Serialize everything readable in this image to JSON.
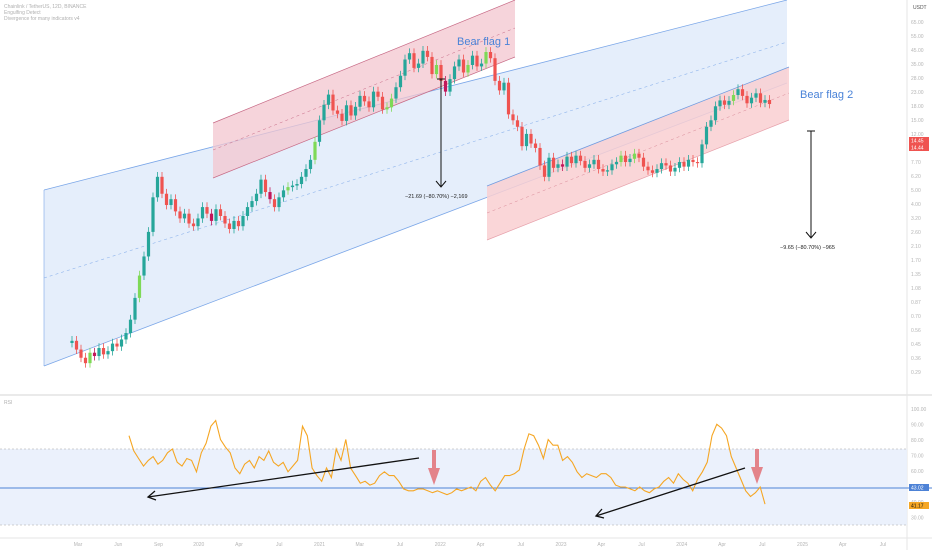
{
  "header": {
    "line1": "Chainlink / TetherUS, 12D, BINANCE",
    "line2": "Engulfing Detect",
    "line3": "Divergence for many indicators v4",
    "currency": "USDT"
  },
  "rsi_label": "RSI",
  "chart_data": {
    "type": "candlestick",
    "price_scale": "log",
    "price_axis_ticks": [
      "65.00",
      "55.00",
      "45.00",
      "35.00",
      "28.00",
      "23.00",
      "18.00",
      "15.00",
      "12.00",
      "9.50",
      "7.70",
      "6.20",
      "5.00",
      "4.00",
      "3.20",
      "2.60",
      "2.10",
      "1.70",
      "1.35",
      "1.08",
      "0.87",
      "0.70",
      "0.56",
      "0.45",
      "0.36",
      "0.29"
    ],
    "price_badges": [
      "14.45",
      "14.44"
    ],
    "rsi_axis_ticks": [
      "100.00",
      "90.00",
      "80.00",
      "70.00",
      "60.00",
      "50.00",
      "40.00",
      "30.00"
    ],
    "rsi_badges": [
      "43.02",
      "41.17"
    ],
    "time_labels": [
      "Mar",
      "Jun",
      "Sep",
      "2020",
      "Apr",
      "Jul",
      "2021",
      "Mar",
      "Jul",
      "2022",
      "Apr",
      "Jul",
      "2023",
      "Apr",
      "Jul",
      "2024",
      "Apr",
      "Jul",
      "2025",
      "Apr",
      "Jul"
    ],
    "annotations": {
      "bear_flag_1": "Bear flag 1",
      "bear_flag_2": "Bear flag 2",
      "measure_1": "−21.69 (−80.70%) −2,169",
      "measure_2": "−9.65 (−80.70%) −965"
    },
    "candle_closes": [
      0.52,
      0.46,
      0.41,
      0.38,
      0.44,
      0.42,
      0.47,
      0.43,
      0.45,
      0.5,
      0.48,
      0.53,
      0.58,
      0.7,
      0.95,
      1.3,
      1.7,
      2.4,
      3.9,
      5.2,
      4.1,
      3.5,
      3.8,
      3.2,
      2.9,
      3.1,
      2.7,
      2.6,
      2.9,
      3.4,
      3.1,
      2.8,
      3.3,
      3.0,
      2.7,
      2.5,
      2.8,
      2.6,
      3.0,
      3.4,
      3.7,
      4.1,
      5.0,
      4.2,
      3.8,
      3.4,
      3.9,
      4.3,
      4.5,
      4.6,
      4.7,
      5.2,
      5.8,
      6.6,
      8.5,
      11.5,
      14.3,
      16.5,
      13.2,
      12.6,
      11.4,
      14.2,
      12.3,
      13.9,
      16.2,
      15.0,
      13.8,
      17.2,
      16.0,
      13.4,
      13.8,
      15.6,
      18.3,
      21.5,
      27.0,
      29.5,
      24.0,
      25.5,
      30.5,
      28.0,
      22.0,
      25.0,
      20.0,
      17.2,
      20.5,
      24.5,
      27.0,
      22.5,
      25.0,
      28.5,
      24.5,
      25.5,
      30.0,
      27.5,
      20.0,
      17.5,
      19.5,
      12.5,
      11.5,
      10.5,
      8.0,
      9.5,
      8.3,
      7.8,
      6.1,
      5.2,
      6.8,
      5.9,
      6.2,
      6.0,
      6.9,
      6.3,
      7.0,
      6.5,
      5.9,
      6.2,
      6.6,
      5.8,
      5.6,
      5.7,
      6.2,
      6.4,
      7.0,
      6.4,
      6.7,
      7.2,
      6.8,
      6.0,
      5.7,
      5.5,
      5.8,
      6.3,
      6.1,
      5.6,
      5.9,
      6.4,
      6.0,
      6.6,
      6.4,
      6.3,
      8.2,
      10.5,
      11.5,
      14.0,
      15.2,
      14.3,
      15.1,
      16.4,
      17.8,
      16.2,
      14.6,
      15.8,
      16.8,
      14.7,
      15.3,
      14.45
    ],
    "rsi_values": [
      77,
      69,
      65,
      61,
      64,
      66,
      62,
      64,
      68,
      70,
      63,
      61,
      65,
      64,
      58,
      68,
      73,
      82,
      85,
      75,
      71,
      68,
      60,
      57,
      62,
      64,
      60,
      66,
      64,
      69,
      63,
      61,
      63,
      58,
      61,
      64,
      82,
      77,
      60,
      56,
      53,
      60,
      55,
      70,
      64,
      75,
      60,
      56,
      52,
      53,
      51,
      52,
      56,
      58,
      56,
      56,
      53,
      49,
      48,
      48,
      49,
      49,
      48,
      47,
      48,
      47,
      46,
      47,
      49,
      48,
      49,
      50,
      48,
      53,
      55,
      51,
      48,
      52,
      56,
      56,
      57,
      59,
      70,
      78,
      77,
      72,
      65,
      75,
      72,
      72,
      64,
      66,
      63,
      58,
      55,
      57,
      56,
      55,
      57,
      57,
      55,
      51,
      50,
      50,
      49,
      48,
      50,
      48,
      47,
      49,
      50,
      53,
      55,
      52,
      57,
      54,
      52,
      48,
      54,
      58,
      63,
      77,
      83,
      81,
      77,
      66,
      60,
      54,
      48,
      45,
      47,
      50,
      41
    ]
  }
}
